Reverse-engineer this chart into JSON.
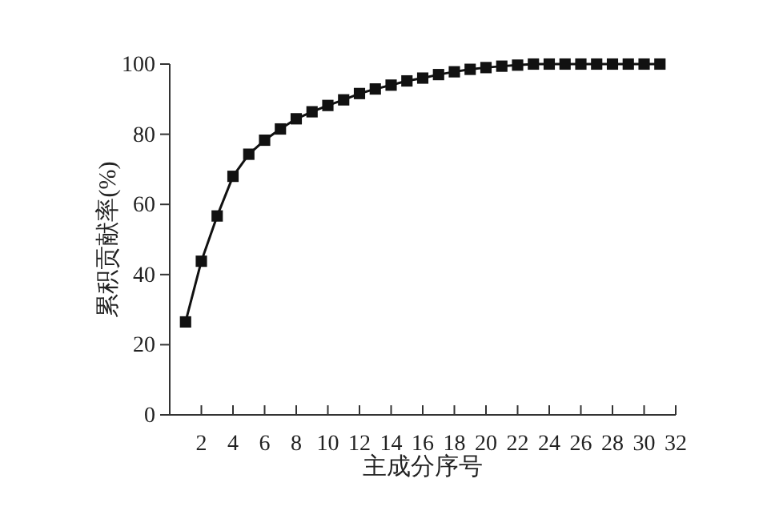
{
  "chart_data": {
    "type": "line",
    "xlabel": "主成分序号",
    "ylabel": "累积贡献率(%)",
    "x": [
      1,
      2,
      3,
      4,
      5,
      6,
      7,
      8,
      9,
      10,
      11,
      12,
      13,
      14,
      15,
      16,
      17,
      18,
      19,
      20,
      21,
      22,
      23,
      24,
      25,
      26,
      27,
      28,
      29,
      30,
      31
    ],
    "series": [
      {
        "color": "#111111",
        "values": [
          26.5,
          43.8,
          56.7,
          68,
          74.3,
          78.3,
          81.5,
          84.4,
          86.4,
          88.2,
          89.8,
          91.6,
          92.9,
          94,
          95.2,
          96,
          97,
          97.8,
          98.5,
          99,
          99.4,
          99.7,
          100,
          100,
          100,
          100,
          100,
          100,
          100,
          100,
          100
        ]
      }
    ],
    "xlim": [
      0,
      32
    ],
    "xticks": [
      2,
      4,
      6,
      8,
      10,
      12,
      14,
      16,
      18,
      20,
      22,
      24,
      26,
      28,
      30,
      32
    ],
    "ylim": [
      0,
      100
    ],
    "yticks": [
      0,
      20,
      40,
      60,
      80,
      100
    ],
    "marker": "square",
    "line_style": "solid"
  }
}
